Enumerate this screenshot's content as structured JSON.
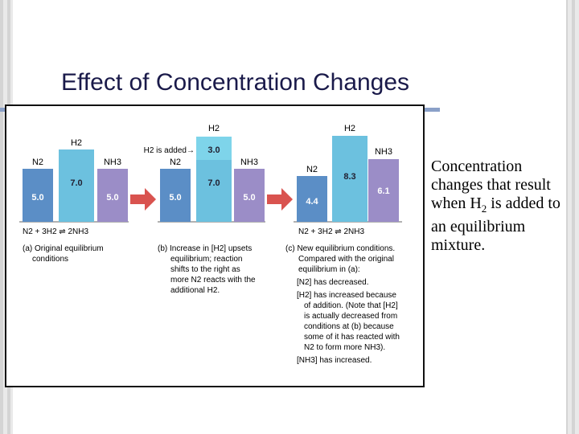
{
  "slide": {
    "title": "Effect of Concentration Changes",
    "caption_pre": "Concentration changes that result when H",
    "caption_sub": "2",
    "caption_post": " is added to an equilibrium mixture."
  },
  "colors": {
    "n2": "#5b8ec6",
    "h2": "#6cc1df",
    "nh3": "#9b8dc7",
    "h2_added": "#7ed4ea",
    "arrow": "#d9534f"
  },
  "figure": {
    "panel_a": {
      "n2": {
        "label": "N2",
        "value": "5.0"
      },
      "h2": {
        "label": "H2",
        "value": "7.0"
      },
      "nh3": {
        "label": "NH3",
        "value": "5.0"
      },
      "equation": "N2  +  3H2 ⇌ 2NH3",
      "caption": [
        "(a) Original equilibrium",
        "conditions"
      ]
    },
    "panel_b": {
      "n2": {
        "label": "N2",
        "value": "5.0"
      },
      "h2": {
        "label": "H2",
        "value": "7.0",
        "added": "3.0",
        "added_label": "H2 is added→"
      },
      "nh3": {
        "label": "NH3",
        "value": "5.0"
      },
      "caption": [
        "(b) Increase in [H2] upsets",
        "equilibrium; reaction",
        "shifts to the right as",
        "more N2 reacts with the",
        "additional H2."
      ]
    },
    "panel_c": {
      "n2": {
        "label": "N2",
        "value": "4.4"
      },
      "h2": {
        "label": "H2",
        "value": "8.3"
      },
      "nh3": {
        "label": "NH3",
        "value": "6.1"
      },
      "equation": "N2  +  3H2 ⇌ 2NH3",
      "caption": [
        "(c) New equilibrium conditions.",
        "Compared with the original",
        "equilibrium in (a):",
        "[N2] has decreased.",
        "[H2] has increased because",
        "of addition. (Note that [H2]",
        "is actually decreased from",
        "conditions at (b) because",
        "some of it has reacted with",
        "N2 to form more NH3).",
        "[NH3] has increased."
      ]
    }
  }
}
